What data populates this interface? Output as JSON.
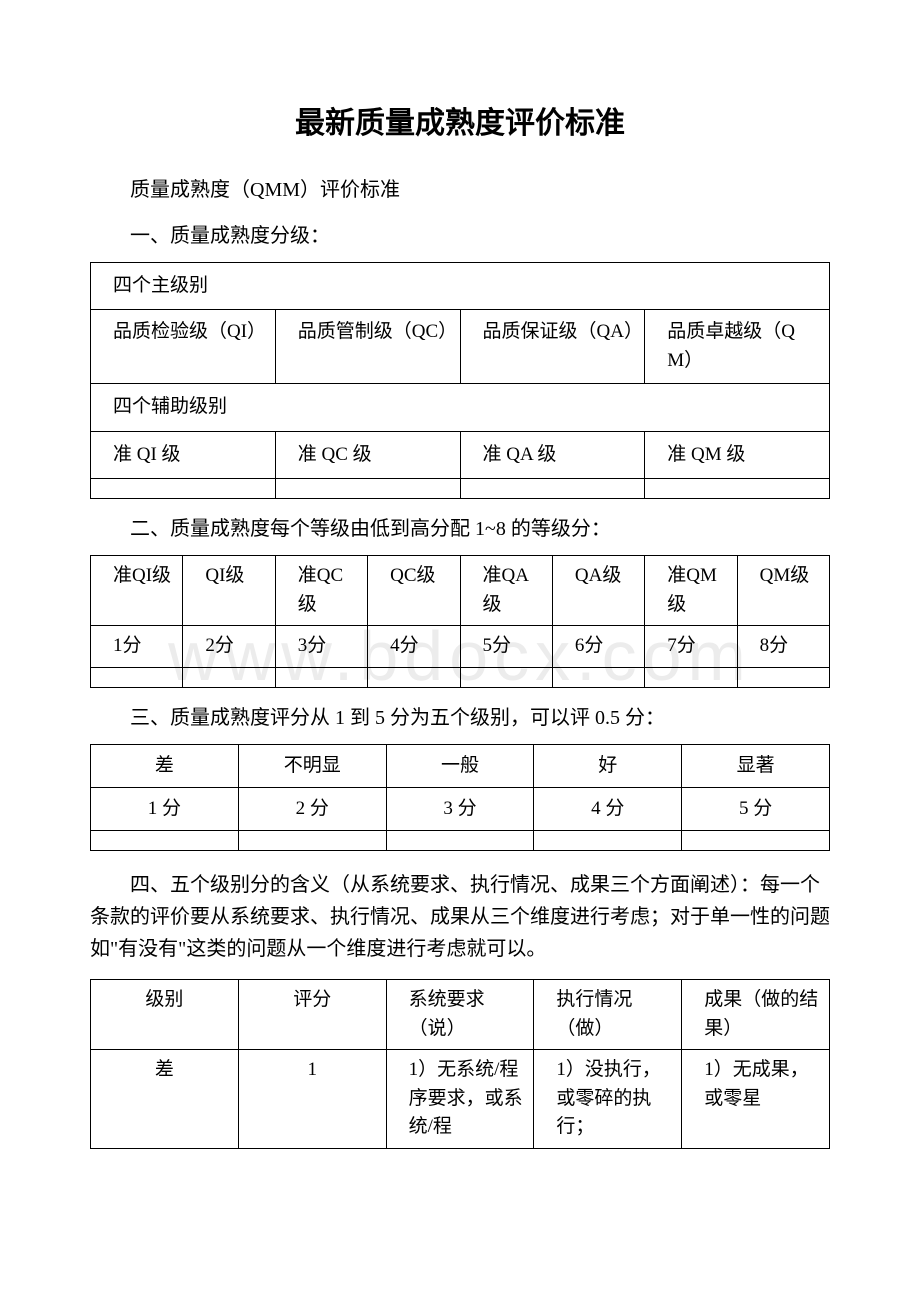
{
  "watermark": "www.bdocx.com",
  "title": "最新质量成熟度评价标准",
  "subtitle": "质量成熟度（QMM）评价标准",
  "section1": {
    "heading": "一、质量成熟度分级：",
    "main_levels_label": "四个主级别",
    "main_levels": [
      "品质检验级（QI）",
      "品质管制级（QC）",
      "品质保证级（QA）",
      "品质卓越级（QM）"
    ],
    "aux_levels_label": "四个辅助级别",
    "aux_levels": [
      "准 QI 级",
      "准 QC 级",
      "准 QA 级",
      "准 QM 级"
    ]
  },
  "section2": {
    "heading": "二、质量成熟度每个等级由低到高分配 1~8 的等级分：",
    "levels": [
      "准QI级",
      "QI级",
      "准QC级",
      "QC级",
      "准QA级",
      "QA级",
      "准QM级",
      "QM级"
    ],
    "scores": [
      "1分",
      "2分",
      "3分",
      "4分",
      "5分",
      "6分",
      "7分",
      "8分"
    ]
  },
  "section3": {
    "heading": "三、质量成熟度评分从 1 到 5 分为五个级别，可以评 0.5 分：",
    "labels": [
      "差",
      "不明显",
      "一般",
      "好",
      "显著"
    ],
    "scores": [
      "1 分",
      "2 分",
      "3 分",
      "4 分",
      "5 分"
    ]
  },
  "section4": {
    "heading": "四、五个级别分的含义（从系统要求、执行情况、成果三个方面阐述）：每一个条款的评价要从系统要求、执行情况、成果从三个维度进行考虑；对于单一性的问题如\"有没有\"这类的问题从一个维度进行考虑就可以。",
    "headers": [
      "级别",
      "评分",
      "系统要求（说）",
      "执行情况（做）",
      "成果（做的结果）"
    ],
    "row1": [
      "差",
      "1",
      "1）无系统/程序要求，或系统/程",
      "1）没执行，或零碎的执行；",
      "1）无成果，或零星"
    ]
  }
}
